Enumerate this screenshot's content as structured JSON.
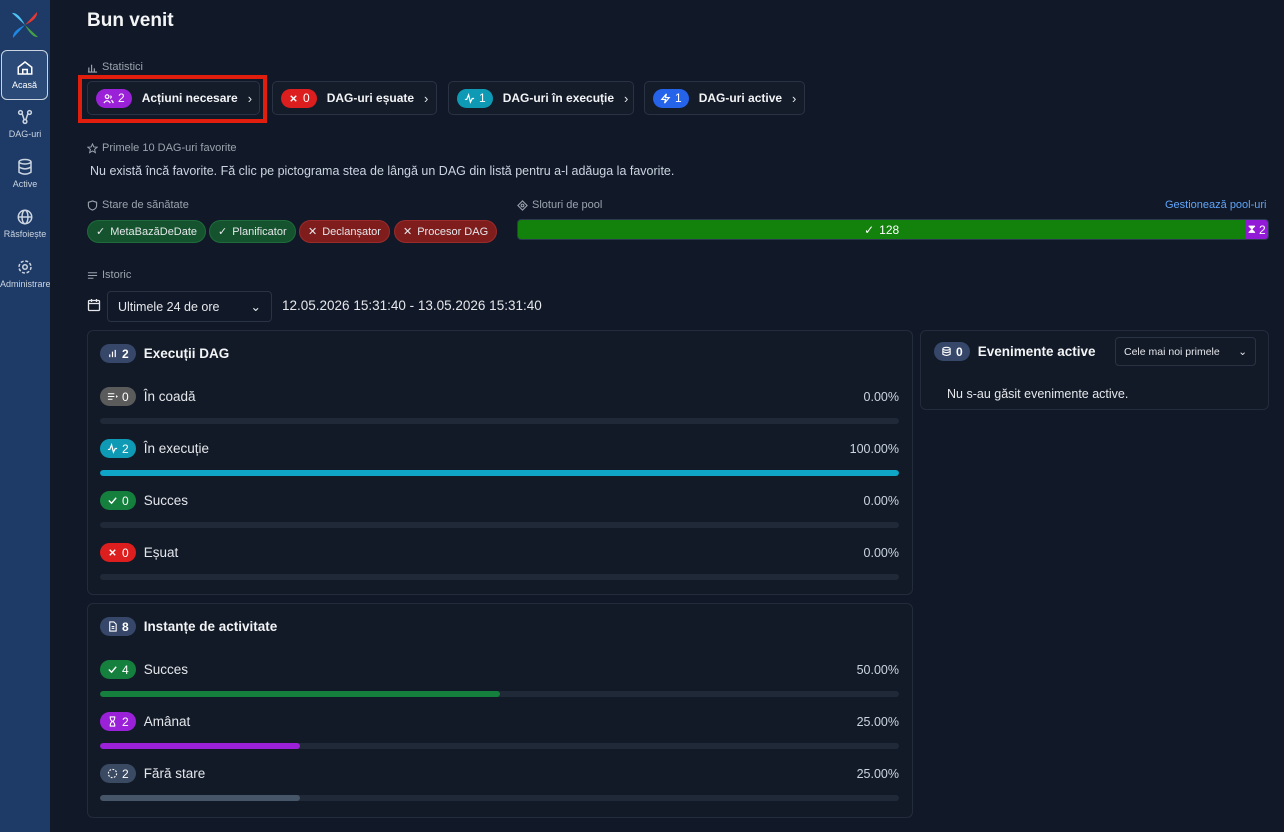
{
  "sidebar": {
    "items": [
      {
        "label": "Acasă",
        "icon": "home-icon"
      },
      {
        "label": "DAG-uri",
        "icon": "dags-icon"
      },
      {
        "label": "Active",
        "icon": "database-icon"
      },
      {
        "label": "Răsfoiește",
        "icon": "globe-icon"
      },
      {
        "label": "Administrare",
        "icon": "gear-icon"
      }
    ]
  },
  "page_title": "Bun venit",
  "stats": {
    "section_label": "Statistici",
    "buttons": [
      {
        "count": "2",
        "label": "Acțiuni necesare",
        "color": "#9b21d9"
      },
      {
        "count": "0",
        "label": "DAG-uri eșuate",
        "color": "#dc1e1e"
      },
      {
        "count": "1",
        "label": "DAG-uri în execuție",
        "color": "#0e9ab5"
      },
      {
        "count": "1",
        "label": "DAG-uri active",
        "color": "#2563eb"
      }
    ]
  },
  "favorites": {
    "section_label": "Primele 10 DAG-uri favorite",
    "empty_note": "Nu există încă favorite. Fă clic pe pictograma stea de lângă un DAG din listă pentru a-l adăuga la favorite."
  },
  "health": {
    "section_label": "Stare de sănătate",
    "tags": [
      {
        "label": "MetaBazăDeDate",
        "ok": true
      },
      {
        "label": "Planificator",
        "ok": true
      },
      {
        "label": "Declanșator",
        "ok": false
      },
      {
        "label": "Procesor DAG",
        "ok": false
      }
    ]
  },
  "pool": {
    "section_label": "Sloturi de pool",
    "manage_link": "Gestionează pool-uri",
    "open_slots": "128",
    "deferred_slots": "2",
    "open_fraction": 0.9697,
    "ok_color": "#13820d",
    "deferred_color": "#9219d6"
  },
  "history": {
    "section_label": "Istoric",
    "range_option": "Ultimele 24 de ore",
    "range_text": "12.05.2026 15:31:40 - 13.05.2026 15:31:40"
  },
  "dag_runs": {
    "title": "Execuții DAG",
    "count": "2",
    "rows": [
      {
        "label": "În coadă",
        "count": "0",
        "pct": "0.00%",
        "fraction": 0,
        "color": "#5b5b5b",
        "fill": "#6b7280"
      },
      {
        "label": "În execuție",
        "count": "2",
        "pct": "100.00%",
        "fraction": 1.0,
        "color": "#0e9ab5",
        "fill": "#0ea5c6"
      },
      {
        "label": "Succes",
        "count": "0",
        "pct": "0.00%",
        "fraction": 0,
        "color": "#15803d",
        "fill": "#15803d"
      },
      {
        "label": "Eșuat",
        "count": "0",
        "pct": "0.00%",
        "fraction": 0,
        "color": "#dc1e1e",
        "fill": "#dc2626"
      }
    ]
  },
  "task_instances": {
    "title": "Instanțe de activitate",
    "count": "8",
    "rows": [
      {
        "label": "Succes",
        "count": "4",
        "pct": "50.00%",
        "fraction": 0.5,
        "color": "#15803d",
        "fill": "#15803d"
      },
      {
        "label": "Amânat",
        "count": "2",
        "pct": "25.00%",
        "fraction": 0.25,
        "color": "#9b21d9",
        "fill": "#9b21d9"
      },
      {
        "label": "Fără stare",
        "count": "2",
        "pct": "25.00%",
        "fraction": 0.25,
        "color": "#3b4a63",
        "fill": "#475569"
      }
    ]
  },
  "asset_events": {
    "title": "Evenimente active",
    "count": "0",
    "sort_option": "Cele mai noi primele",
    "empty_note": "Nu s-au găsit evenimente active."
  }
}
